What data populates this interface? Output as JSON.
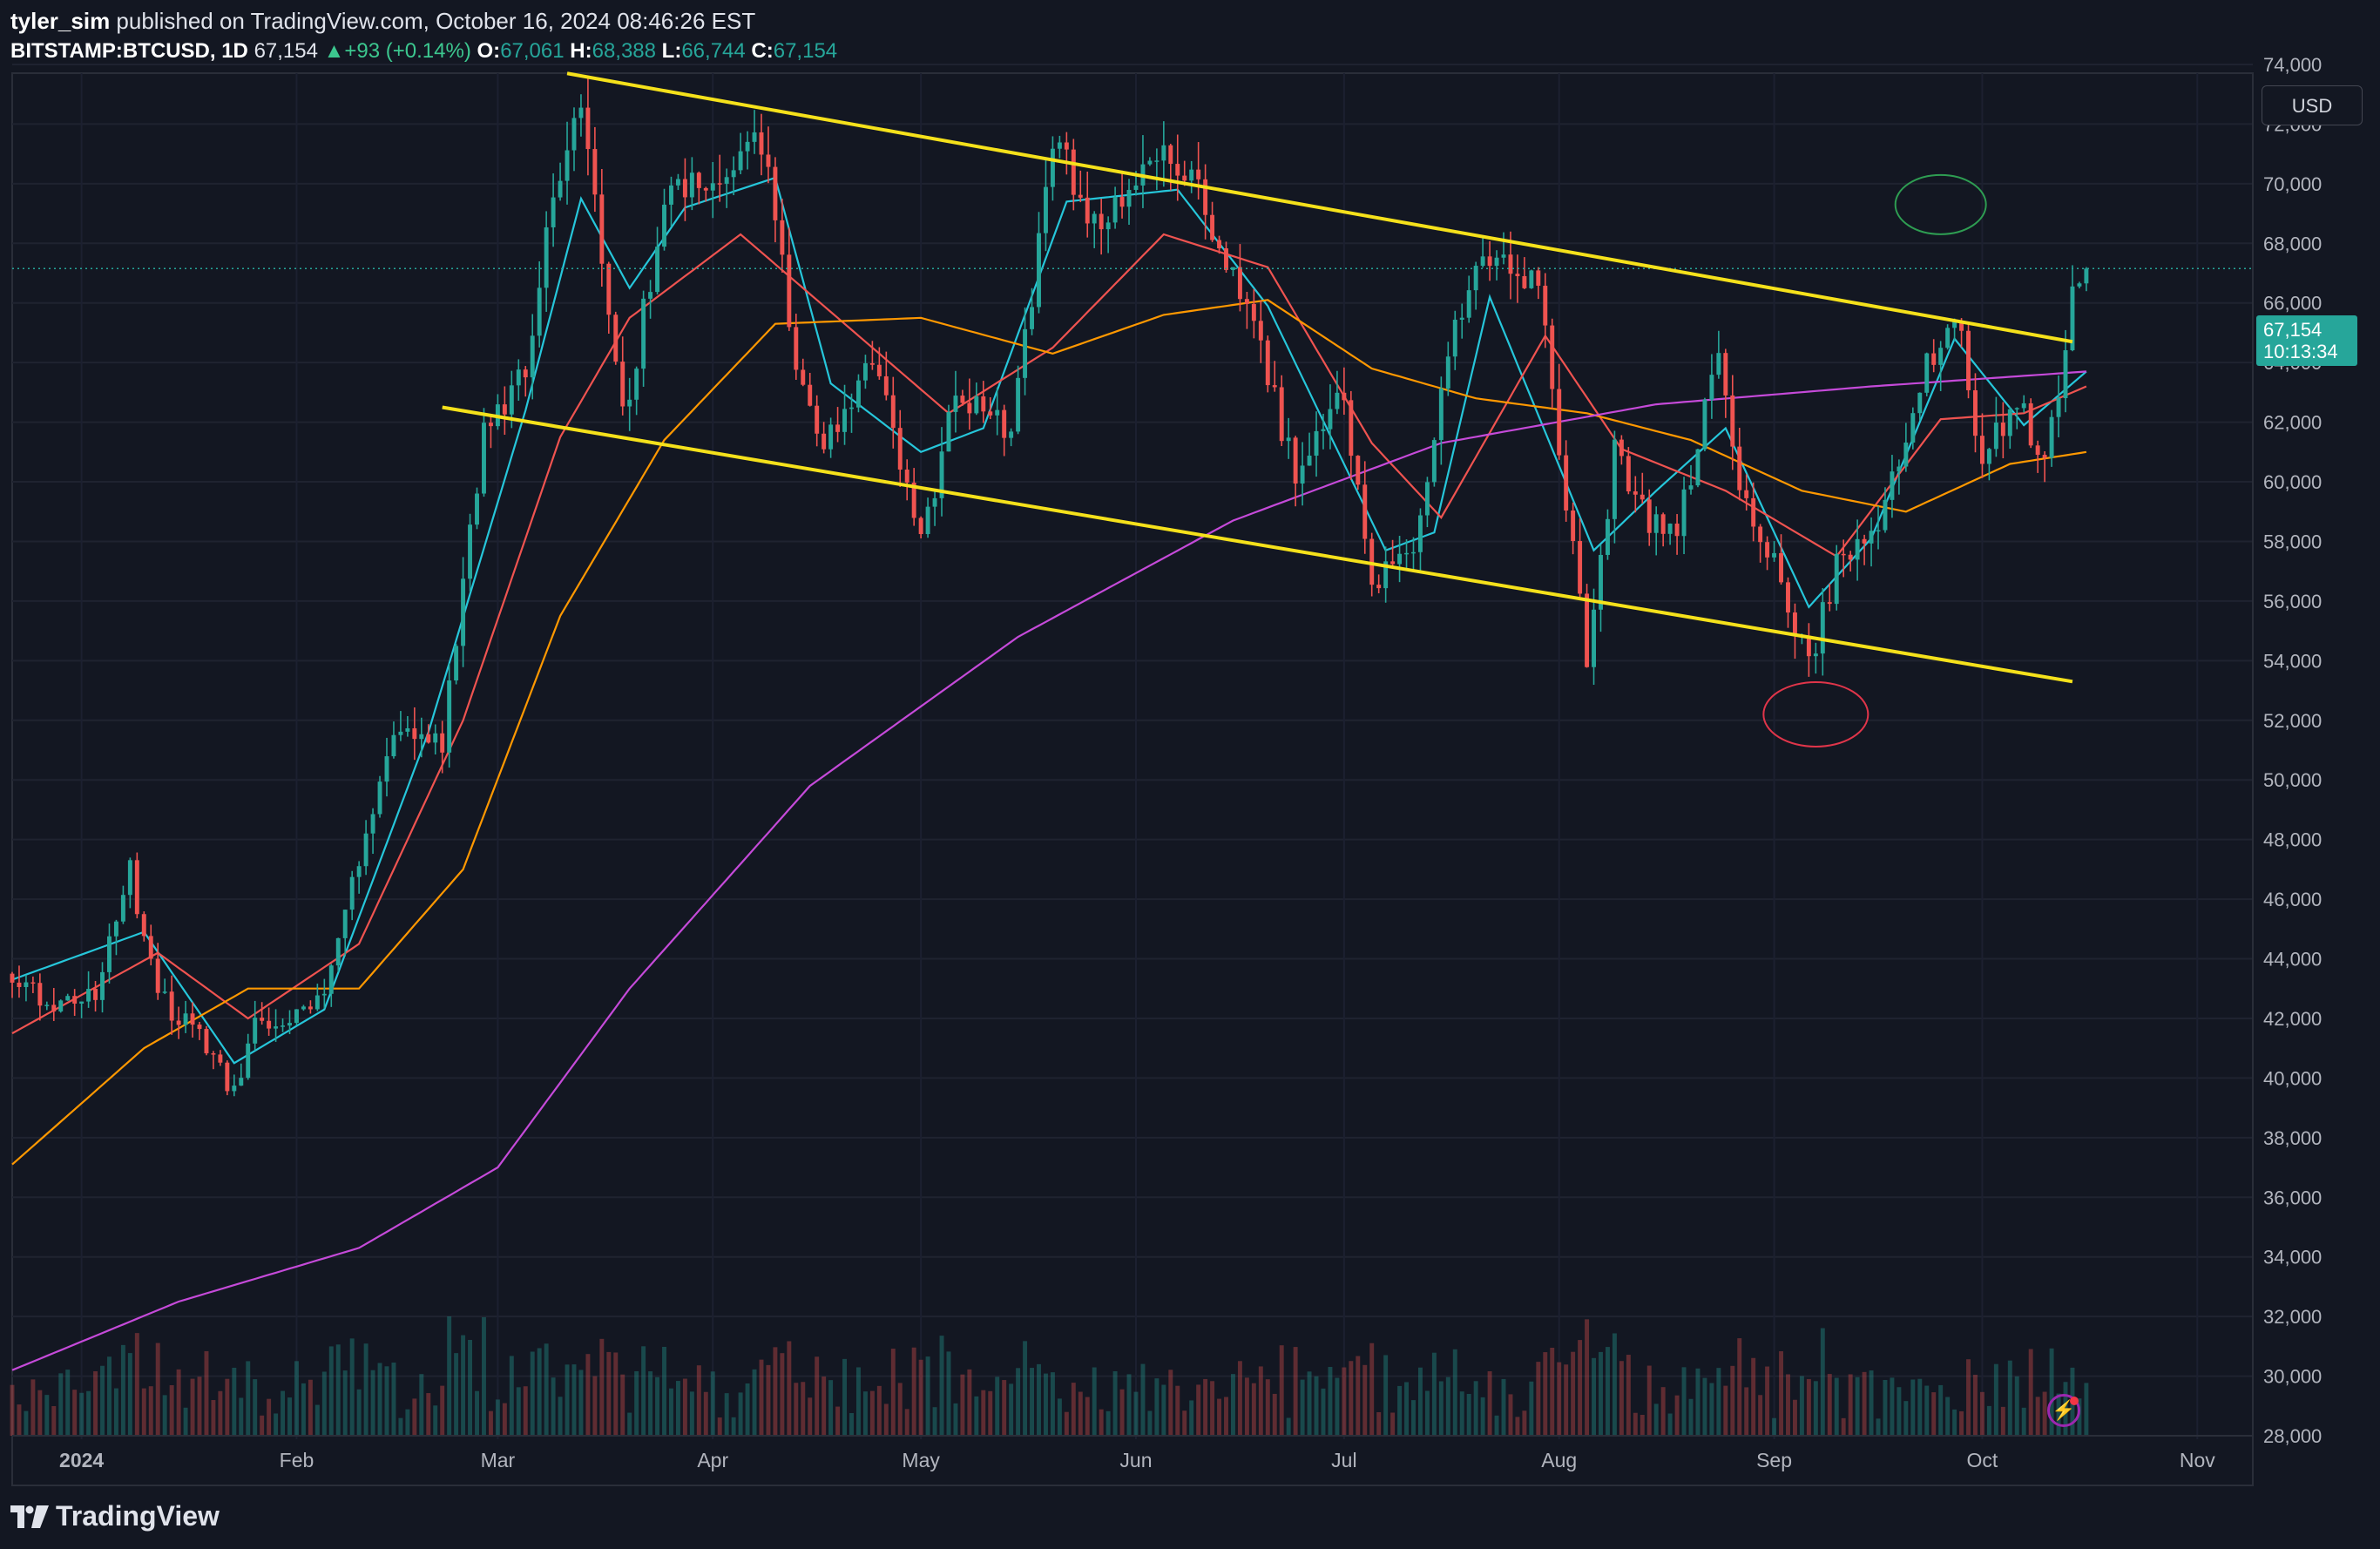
{
  "header": {
    "author": "tyler_sim",
    "published_text": "published on TradingView.com, October 16, 2024 08:46:26 EST",
    "symbol": "BITSTAMP:BTCUSD, 1D",
    "last": "67,154",
    "change_arrow": "▲",
    "change": "+93 (+0.14%)",
    "open_label": "O:",
    "open": "67,061",
    "high_label": "H:",
    "high": "68,388",
    "low_label": "L:",
    "low": "66,744",
    "close_label": "C:",
    "close": "67,154"
  },
  "currency_button": "USD",
  "price_label": {
    "price": "67,154",
    "countdown": "10:13:34"
  },
  "logo_text": "TradingView",
  "colors": {
    "background": "#131722",
    "up": "#26a69a",
    "down": "#ef5350",
    "channel": "#f5e11b",
    "ema_fast": "#26c6da",
    "ema_mid": "#ef5350",
    "ema_slow": "#ff9800",
    "sma_200": "#c54ad9"
  },
  "chart_data": {
    "type": "candlestick",
    "symbol": "BITSTAMP:BTCUSD",
    "interval": "1D",
    "ylim": [
      28000,
      74000
    ],
    "y_ticks": [
      "28,000",
      "30,000",
      "32,000",
      "34,000",
      "36,000",
      "38,000",
      "40,000",
      "42,000",
      "44,000",
      "46,000",
      "48,000",
      "50,000",
      "52,000",
      "54,000",
      "56,000",
      "58,000",
      "60,000",
      "62,000",
      "64,000",
      "66,000",
      "68,000",
      "70,000",
      "72,000",
      "74,000"
    ],
    "x_range": [
      "2023-12-22",
      "2024-11-09"
    ],
    "x_ticks": [
      {
        "date": "2024-01-01",
        "label": "2024"
      },
      {
        "date": "2024-02-01",
        "label": "Feb"
      },
      {
        "date": "2024-03-01",
        "label": "Mar"
      },
      {
        "date": "2024-04-01",
        "label": "Apr"
      },
      {
        "date": "2024-05-01",
        "label": "May"
      },
      {
        "date": "2024-06-01",
        "label": "Jun"
      },
      {
        "date": "2024-07-01",
        "label": "Jul"
      },
      {
        "date": "2024-08-01",
        "label": "Aug"
      },
      {
        "date": "2024-09-01",
        "label": "Sep"
      },
      {
        "date": "2024-10-01",
        "label": "Oct"
      },
      {
        "date": "2024-11-01",
        "label": "Nov"
      }
    ],
    "last_price": 67154,
    "close_anchors": [
      [
        "2023-12-22",
        43500
      ],
      [
        "2023-12-28",
        42200
      ],
      [
        "2024-01-03",
        42900
      ],
      [
        "2024-01-08",
        46900
      ],
      [
        "2024-01-12",
        42800
      ],
      [
        "2024-01-18",
        41300
      ],
      [
        "2024-01-23",
        39500
      ],
      [
        "2024-01-26",
        41800
      ],
      [
        "2024-02-05",
        42600
      ],
      [
        "2024-02-10",
        47500
      ],
      [
        "2024-02-15",
        51800
      ],
      [
        "2024-02-22",
        51300
      ],
      [
        "2024-02-28",
        61500
      ],
      [
        "2024-03-05",
        63800
      ],
      [
        "2024-03-08",
        68300
      ],
      [
        "2024-03-13",
        73100
      ],
      [
        "2024-03-19",
        62000
      ],
      [
        "2024-03-26",
        70300
      ],
      [
        "2024-04-01",
        69600
      ],
      [
        "2024-04-08",
        71600
      ],
      [
        "2024-04-13",
        64100
      ],
      [
        "2024-04-17",
        61200
      ],
      [
        "2024-04-24",
        64300
      ],
      [
        "2024-05-01",
        57800
      ],
      [
        "2024-05-06",
        63200
      ],
      [
        "2024-05-14",
        61500
      ],
      [
        "2024-05-20",
        71400
      ],
      [
        "2024-05-27",
        68400
      ],
      [
        "2024-06-05",
        71100
      ],
      [
        "2024-06-10",
        69600
      ],
      [
        "2024-06-18",
        65100
      ],
      [
        "2024-06-24",
        60300
      ],
      [
        "2024-07-01",
        62900
      ],
      [
        "2024-07-05",
        56600
      ],
      [
        "2024-07-11",
        57800
      ],
      [
        "2024-07-17",
        65100
      ],
      [
        "2024-07-22",
        67700
      ],
      [
        "2024-07-29",
        66800
      ],
      [
        "2024-08-05",
        54000
      ],
      [
        "2024-08-09",
        60900
      ],
      [
        "2024-08-14",
        58700
      ],
      [
        "2024-08-18",
        58400
      ],
      [
        "2024-08-24",
        64100
      ],
      [
        "2024-08-27",
        59400
      ],
      [
        "2024-09-01",
        57400
      ],
      [
        "2024-09-06",
        53900
      ],
      [
        "2024-09-10",
        57100
      ],
      [
        "2024-09-16",
        58200
      ],
      [
        "2024-09-22",
        63400
      ],
      [
        "2024-09-27",
        65800
      ],
      [
        "2024-10-01",
        60800
      ],
      [
        "2024-10-06",
        62800
      ],
      [
        "2024-10-10",
        60300
      ],
      [
        "2024-10-14",
        66000
      ],
      [
        "2024-10-16",
        67154
      ]
    ],
    "volume_scale": [
      0,
      100
    ],
    "indicators": [
      {
        "name": "EMA fast",
        "anchors": [
          [
            "2023-12-22",
            43300
          ],
          [
            "2024-01-10",
            44900
          ],
          [
            "2024-01-23",
            40500
          ],
          [
            "2024-02-05",
            42300
          ],
          [
            "2024-02-20",
            51600
          ],
          [
            "2024-03-05",
            62400
          ],
          [
            "2024-03-13",
            69500
          ],
          [
            "2024-03-20",
            66500
          ],
          [
            "2024-03-28",
            69200
          ],
          [
            "2024-04-10",
            70200
          ],
          [
            "2024-04-18",
            63300
          ],
          [
            "2024-05-01",
            61000
          ],
          [
            "2024-05-10",
            61800
          ],
          [
            "2024-05-22",
            69400
          ],
          [
            "2024-06-07",
            69800
          ],
          [
            "2024-06-20",
            65900
          ],
          [
            "2024-07-07",
            57700
          ],
          [
            "2024-07-14",
            58300
          ],
          [
            "2024-07-22",
            66200
          ],
          [
            "2024-08-06",
            57700
          ],
          [
            "2024-08-15",
            59700
          ],
          [
            "2024-08-25",
            61800
          ],
          [
            "2024-09-06",
            55800
          ],
          [
            "2024-09-15",
            58100
          ],
          [
            "2024-09-27",
            64800
          ],
          [
            "2024-10-07",
            61900
          ],
          [
            "2024-10-16",
            63700
          ]
        ]
      },
      {
        "name": "EMA mid",
        "anchors": [
          [
            "2023-12-22",
            41500
          ],
          [
            "2024-01-12",
            44200
          ],
          [
            "2024-01-25",
            42000
          ],
          [
            "2024-02-10",
            44500
          ],
          [
            "2024-02-25",
            52000
          ],
          [
            "2024-03-10",
            61500
          ],
          [
            "2024-03-20",
            65500
          ],
          [
            "2024-04-05",
            68300
          ],
          [
            "2024-04-20",
            65300
          ],
          [
            "2024-05-05",
            62300
          ],
          [
            "2024-05-20",
            64500
          ],
          [
            "2024-06-05",
            68300
          ],
          [
            "2024-06-20",
            67200
          ],
          [
            "2024-07-05",
            61300
          ],
          [
            "2024-07-15",
            58800
          ],
          [
            "2024-07-30",
            64900
          ],
          [
            "2024-08-10",
            61100
          ],
          [
            "2024-08-25",
            59700
          ],
          [
            "2024-09-10",
            57500
          ],
          [
            "2024-09-25",
            62100
          ],
          [
            "2024-10-07",
            62300
          ],
          [
            "2024-10-16",
            63200
          ]
        ]
      },
      {
        "name": "EMA slow",
        "anchors": [
          [
            "2023-12-22",
            37100
          ],
          [
            "2024-01-10",
            41000
          ],
          [
            "2024-01-25",
            43000
          ],
          [
            "2024-02-10",
            43000
          ],
          [
            "2024-02-25",
            47000
          ],
          [
            "2024-03-10",
            55500
          ],
          [
            "2024-03-25",
            61400
          ],
          [
            "2024-04-10",
            65300
          ],
          [
            "2024-05-01",
            65500
          ],
          [
            "2024-05-20",
            64300
          ],
          [
            "2024-06-05",
            65600
          ],
          [
            "2024-06-20",
            66100
          ],
          [
            "2024-07-05",
            63800
          ],
          [
            "2024-07-20",
            62800
          ],
          [
            "2024-08-05",
            62300
          ],
          [
            "2024-08-20",
            61400
          ],
          [
            "2024-09-05",
            59700
          ],
          [
            "2024-09-20",
            59000
          ],
          [
            "2024-10-05",
            60600
          ],
          [
            "2024-10-16",
            61000
          ]
        ]
      },
      {
        "name": "SMA 200",
        "anchors": [
          [
            "2023-12-22",
            30200
          ],
          [
            "2024-01-15",
            32500
          ],
          [
            "2024-02-10",
            34300
          ],
          [
            "2024-03-01",
            37000
          ],
          [
            "2024-03-20",
            43000
          ],
          [
            "2024-04-15",
            49800
          ],
          [
            "2024-05-15",
            54800
          ],
          [
            "2024-06-15",
            58700
          ],
          [
            "2024-07-15",
            61300
          ],
          [
            "2024-08-15",
            62600
          ],
          [
            "2024-09-15",
            63200
          ],
          [
            "2024-10-16",
            63700
          ]
        ]
      }
    ],
    "drawings": {
      "channel_upper": [
        [
          "2024-03-11",
          73700
        ],
        [
          "2024-10-14",
          64700
        ]
      ],
      "channel_lower": [
        [
          "2024-02-22",
          62500
        ],
        [
          "2024-10-14",
          53300
        ]
      ],
      "target_ellipse": {
        "date": "2024-09-25",
        "price": 69300
      },
      "support_ellipse": {
        "date": "2024-09-07",
        "price": 52200
      }
    }
  }
}
